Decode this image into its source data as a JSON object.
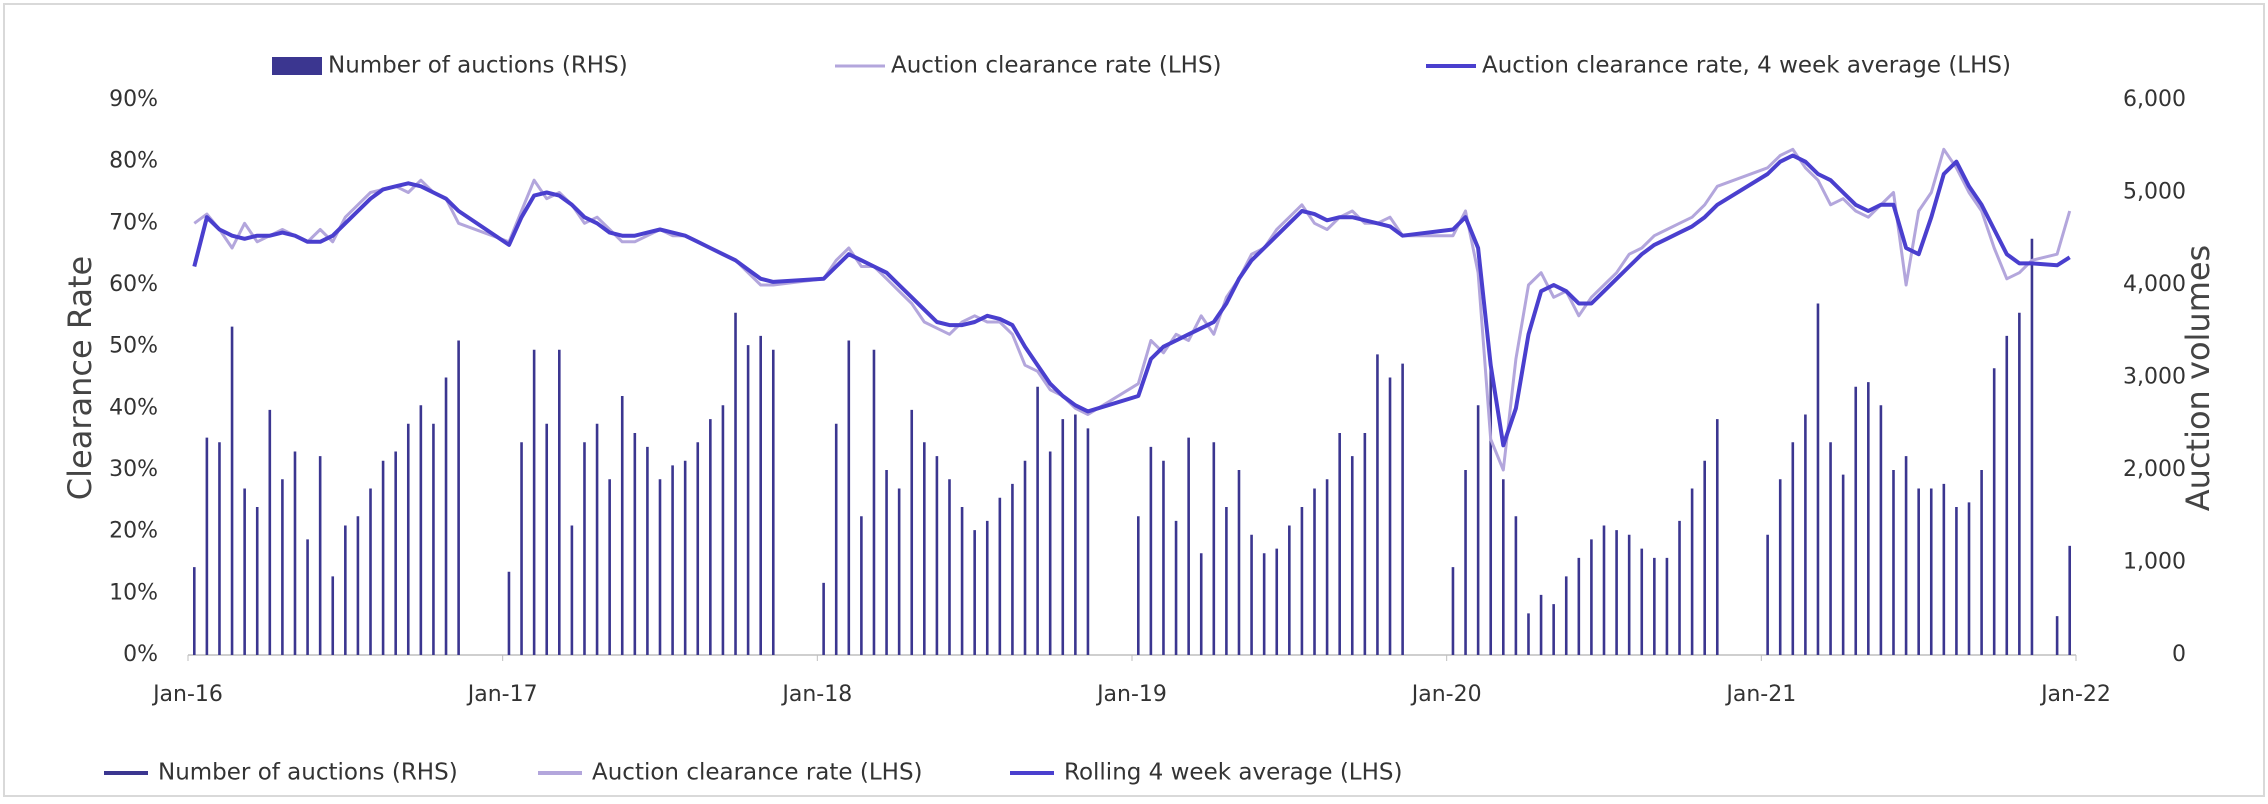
{
  "chart_data": {
    "type": "bar-line",
    "y_title": "Clearance Rate",
    "y2_title": "Auction volumes",
    "legend_bottom": [
      "Number of auctions (RHS)",
      "Auction clearance rate (LHS)",
      "Rolling 4 week average (LHS)"
    ],
    "xlim": [
      2016,
      2022
    ],
    "xticks": [
      {
        "value": 2016,
        "label": "Jan-16"
      },
      {
        "value": 2017,
        "label": "Jan-17"
      },
      {
        "value": 2018,
        "label": "Jan-18"
      },
      {
        "value": 2019,
        "label": "Jan-19"
      },
      {
        "value": 2020,
        "label": "Jan-20"
      },
      {
        "value": 2021,
        "label": "Jan-21"
      },
      {
        "value": 2022,
        "label": "Jan-22"
      }
    ],
    "ylim": [
      0,
      90
    ],
    "yticks": [
      {
        "value": 0,
        "label": "0%"
      },
      {
        "value": 10,
        "label": "10%"
      },
      {
        "value": 20,
        "label": "20%"
      },
      {
        "value": 30,
        "label": "30%"
      },
      {
        "value": 40,
        "label": "40%"
      },
      {
        "value": 50,
        "label": "50%"
      },
      {
        "value": 60,
        "label": "60%"
      },
      {
        "value": 70,
        "label": "70%"
      },
      {
        "value": 80,
        "label": "80%"
      },
      {
        "value": 90,
        "label": "90%"
      }
    ],
    "y2lim": [
      0,
      6000
    ],
    "y2ticks": [
      0,
      {
        "value": 1000,
        "label": "1,000"
      },
      {
        "value": 2000,
        "label": "2,000"
      },
      {
        "value": 3000,
        "label": "3,000"
      },
      {
        "value": 4000,
        "label": "4,000"
      },
      {
        "value": 5000,
        "label": "5,000"
      },
      {
        "value": 6000,
        "label": "6,000"
      }
    ],
    "grid": false,
    "x": [
      2016.02,
      2016.06,
      2016.1,
      2016.14,
      2016.18,
      2016.22,
      2016.26,
      2016.3,
      2016.34,
      2016.38,
      2016.42,
      2016.46,
      2016.5,
      2016.54,
      2016.58,
      2016.62,
      2016.66,
      2016.7,
      2016.74,
      2016.78,
      2016.82,
      2016.86,
      2017.02,
      2017.06,
      2017.1,
      2017.14,
      2017.18,
      2017.22,
      2017.26,
      2017.3,
      2017.34,
      2017.38,
      2017.42,
      2017.46,
      2017.5,
      2017.54,
      2017.58,
      2017.62,
      2017.66,
      2017.7,
      2017.74,
      2017.78,
      2017.82,
      2017.86,
      2018.02,
      2018.06,
      2018.1,
      2018.14,
      2018.18,
      2018.22,
      2018.26,
      2018.3,
      2018.34,
      2018.38,
      2018.42,
      2018.46,
      2018.5,
      2018.54,
      2018.58,
      2018.62,
      2018.66,
      2018.7,
      2018.74,
      2018.78,
      2018.82,
      2018.86,
      2019.02,
      2019.06,
      2019.1,
      2019.14,
      2019.18,
      2019.22,
      2019.26,
      2019.3,
      2019.34,
      2019.38,
      2019.42,
      2019.46,
      2019.5,
      2019.54,
      2019.58,
      2019.62,
      2019.66,
      2019.7,
      2019.74,
      2019.78,
      2019.82,
      2019.86,
      2020.02,
      2020.06,
      2020.1,
      2020.14,
      2020.18,
      2020.22,
      2020.26,
      2020.3,
      2020.34,
      2020.38,
      2020.42,
      2020.46,
      2020.5,
      2020.54,
      2020.58,
      2020.62,
      2020.66,
      2020.7,
      2020.74,
      2020.78,
      2020.82,
      2020.86,
      2021.02,
      2021.06,
      2021.1,
      2021.14,
      2021.18,
      2021.22,
      2021.26,
      2021.3,
      2021.34,
      2021.38,
      2021.42,
      2021.46,
      2021.5,
      2021.54,
      2021.58,
      2021.62,
      2021.66,
      2021.7,
      2021.74,
      2021.78,
      2021.82,
      2021.86,
      2021.94,
      2021.98
    ],
    "series": [
      {
        "name": "Number of auctions (RHS)",
        "color": "#3b3690",
        "axis": "y2",
        "kind": "bar",
        "values": [
          950,
          2350,
          2300,
          3550,
          1800,
          1600,
          2650,
          1900,
          2200,
          1250,
          2150,
          850,
          1400,
          1500,
          1800,
          2100,
          2200,
          2500,
          2700,
          2500,
          3000,
          3400,
          900,
          2300,
          3300,
          2500,
          3300,
          1400,
          2300,
          2500,
          1900,
          2800,
          2400,
          2250,
          1900,
          2050,
          2100,
          2300,
          2550,
          2700,
          3700,
          3350,
          3450,
          3300,
          780,
          2500,
          3400,
          1500,
          3300,
          2000,
          1800,
          2650,
          2300,
          2150,
          1900,
          1600,
          1350,
          1450,
          1700,
          1850,
          2100,
          2900,
          2200,
          2550,
          2600,
          2450,
          1500,
          2250,
          2100,
          1450,
          2350,
          1100,
          2300,
          1600,
          2000,
          1300,
          1100,
          1150,
          1400,
          1600,
          1800,
          1900,
          2400,
          2150,
          2400,
          3250,
          3000,
          3150,
          950,
          2000,
          2700,
          3150,
          1900,
          1500,
          450,
          650,
          550,
          850,
          1050,
          1250,
          1400,
          1350,
          1300,
          1150,
          1050,
          1050,
          1450,
          1800,
          2100,
          2550,
          1300,
          1900,
          2300,
          2600,
          3800,
          2300,
          1950,
          2900,
          2950,
          2700,
          2000,
          2150,
          1800,
          1800,
          1850,
          1600,
          1650,
          2000,
          3100,
          3450,
          3700,
          4500,
          420,
          1180
        ]
      },
      {
        "name": "Auction clearance rate (LHS)",
        "color": "#b3a6dc",
        "kind": "line",
        "values": [
          70,
          71.5,
          69,
          66,
          70,
          67,
          68,
          69,
          68,
          67,
          69,
          67,
          71,
          73,
          75,
          75.5,
          76,
          75,
          77,
          75,
          74,
          70,
          67,
          72,
          77,
          74,
          75,
          73,
          70,
          71,
          69,
          67,
          67,
          68,
          69,
          68,
          68,
          67,
          66,
          65,
          64,
          62,
          60,
          60,
          61,
          64,
          66,
          63,
          63,
          61,
          59,
          57,
          54,
          53,
          52,
          54,
          55,
          54,
          54,
          52,
          47,
          46,
          43,
          42,
          40,
          39,
          44,
          51,
          49,
          52,
          51,
          55,
          52,
          58,
          61,
          65,
          66,
          69,
          71,
          73,
          70,
          69,
          71,
          72,
          70,
          70,
          71,
          68,
          68,
          72,
          62,
          35,
          30,
          48,
          60,
          62,
          58,
          59,
          55,
          58,
          60,
          62,
          65,
          66,
          68,
          69,
          70,
          71,
          73,
          76,
          79,
          81,
          82,
          79,
          77,
          73,
          74,
          72,
          71,
          73,
          75,
          60,
          72,
          75,
          82,
          79,
          75,
          72,
          66,
          61,
          62,
          64,
          65,
          72
        ]
      },
      {
        "name": "Auction clearance rate, 4 week average (LHS)",
        "color": "#4a3fce",
        "kind": "line",
        "values": [
          63,
          71,
          69,
          68,
          67.5,
          68,
          68,
          68.5,
          68,
          67,
          67,
          68,
          70,
          72,
          74,
          75.5,
          76,
          76.5,
          76,
          75,
          74,
          72,
          66.5,
          71,
          74.5,
          75,
          74.5,
          73,
          71,
          70,
          68.5,
          68,
          68,
          68.5,
          69,
          68.5,
          68,
          67,
          66,
          65,
          64,
          62.5,
          61,
          60.5,
          61,
          63,
          65,
          64,
          63,
          62,
          60,
          58,
          56,
          54,
          53.5,
          53.5,
          54,
          55,
          54.5,
          53.5,
          50,
          47,
          44,
          42,
          40.5,
          39.5,
          42,
          48,
          50,
          51,
          52,
          53,
          54,
          57,
          61,
          64,
          66,
          68,
          70,
          72,
          71.5,
          70.5,
          71,
          71,
          70.5,
          70,
          69.5,
          68,
          69,
          71,
          66,
          47,
          34,
          40,
          52,
          59,
          60,
          59,
          57,
          57,
          59,
          61,
          63,
          65,
          66.5,
          67.5,
          68.5,
          69.5,
          71,
          73,
          78,
          80,
          81,
          80,
          78,
          77,
          75,
          73,
          72,
          73,
          73,
          66,
          65,
          71,
          78,
          80,
          76,
          73,
          69,
          65,
          63.5,
          63.5,
          63.2,
          64.5
        ]
      }
    ]
  }
}
